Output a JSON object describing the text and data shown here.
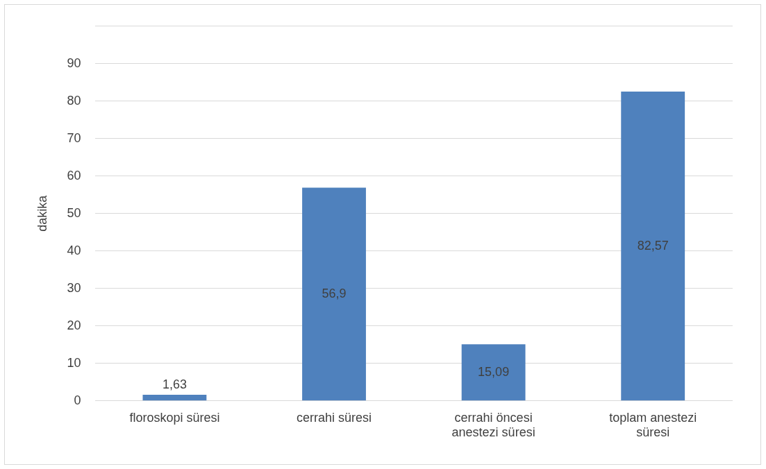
{
  "chart_data": {
    "type": "bar",
    "ylabel": "dakika",
    "categories": [
      "floroskopi süresi",
      "cerrahi süresi",
      "cerrahi öncesi anestezi süresi",
      "toplam anestezi süresi"
    ],
    "values": [
      1.63,
      56.9,
      15.09,
      82.57
    ],
    "value_labels": [
      "1,63",
      "56,9",
      "15,09",
      "82,57"
    ],
    "color": "#4f81bd",
    "ylim": [
      0,
      100
    ],
    "yticks": [
      0,
      10,
      20,
      30,
      40,
      50,
      60,
      70,
      80,
      90,
      {
        "value": 100,
        "label": null
      }
    ],
    "grid": "y",
    "legend": false
  }
}
